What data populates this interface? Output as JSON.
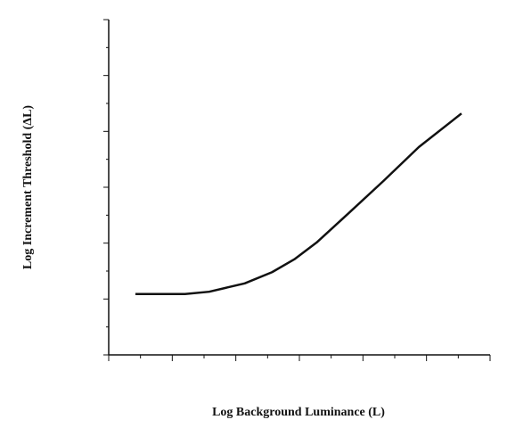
{
  "chart_data": {
    "type": "line",
    "x_label": "Log Background Luminance (L)",
    "y_label": "Log Increment Threshold (ΔL)",
    "x": [
      0.42,
      1.2,
      1.58,
      2.14,
      2.57,
      2.92,
      3.27,
      3.76,
      4.32,
      4.88,
      5.55
    ],
    "series": [
      {
        "color": "#111111",
        "values": [
          1.09,
          1.09,
          1.13,
          1.28,
          1.48,
          1.71,
          2.01,
          2.52,
          3.11,
          3.72,
          4.32
        ]
      }
    ],
    "xlim": [
      0,
      6
    ],
    "ylim": [
      0,
      6
    ],
    "xticks": [
      0,
      0.5,
      1,
      1.5,
      2,
      2.5,
      3,
      3.5,
      4,
      4.5,
      5,
      5.5,
      6
    ],
    "yticks": [
      0,
      0.5,
      1,
      1.5,
      2,
      2.5,
      3,
      3.5,
      4,
      4.5,
      5,
      5.5,
      6
    ]
  }
}
